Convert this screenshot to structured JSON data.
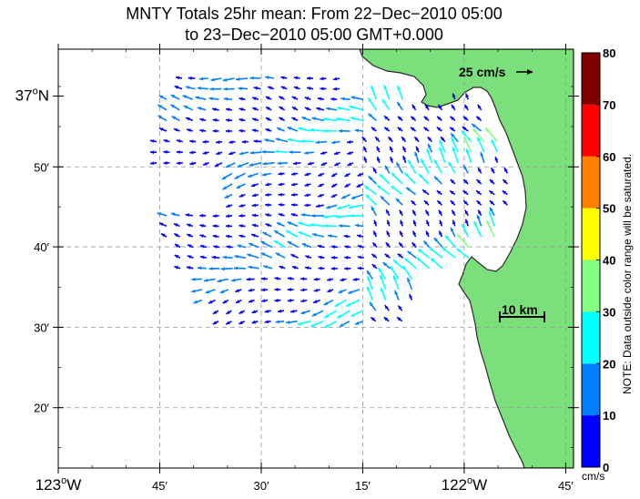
{
  "title": {
    "line1": "MNTY Totals 25hr mean: From 22−Dec−2010 05:00",
    "line2": "to 23−Dec−2010 05:00 GMT+0.000"
  },
  "map": {
    "lat_ticks": [
      {
        "label": "37",
        "suffix": "o",
        "unit": "N",
        "lat": 36.98
      },
      {
        "label": "50′",
        "lat": 36.833
      },
      {
        "label": "40′",
        "lat": 36.667
      },
      {
        "label": "30′",
        "lat": 36.5
      },
      {
        "label": "20′",
        "lat": 36.333
      }
    ],
    "lon_ticks": [
      {
        "label": "123",
        "suffix": "o",
        "unit": "W",
        "lon": -123.0
      },
      {
        "label": "45′",
        "lon": -122.75
      },
      {
        "label": "30′",
        "lon": -122.5
      },
      {
        "label": "15′",
        "lon": -122.25
      },
      {
        "label": "122",
        "suffix": "o",
        "unit": "W",
        "lon": -122.0
      },
      {
        "label": "45′",
        "lon": -121.75
      }
    ],
    "ref_vector_label": "25 cm/s",
    "scale_bar_label": "10 km",
    "land_color": "#7be07b",
    "sea_color": "#ffffff"
  },
  "colorbar": {
    "ticks": [
      "0",
      "10",
      "20",
      "30",
      "40",
      "50",
      "60",
      "70",
      "80"
    ],
    "unit": "cm/s",
    "note": "NOTE: Data outside color range will be saturated.",
    "colors": [
      "#0000ff",
      "#0080ff",
      "#00ffff",
      "#80ff80",
      "#ffff00",
      "#ff8000",
      "#ff0000",
      "#800000"
    ]
  }
}
